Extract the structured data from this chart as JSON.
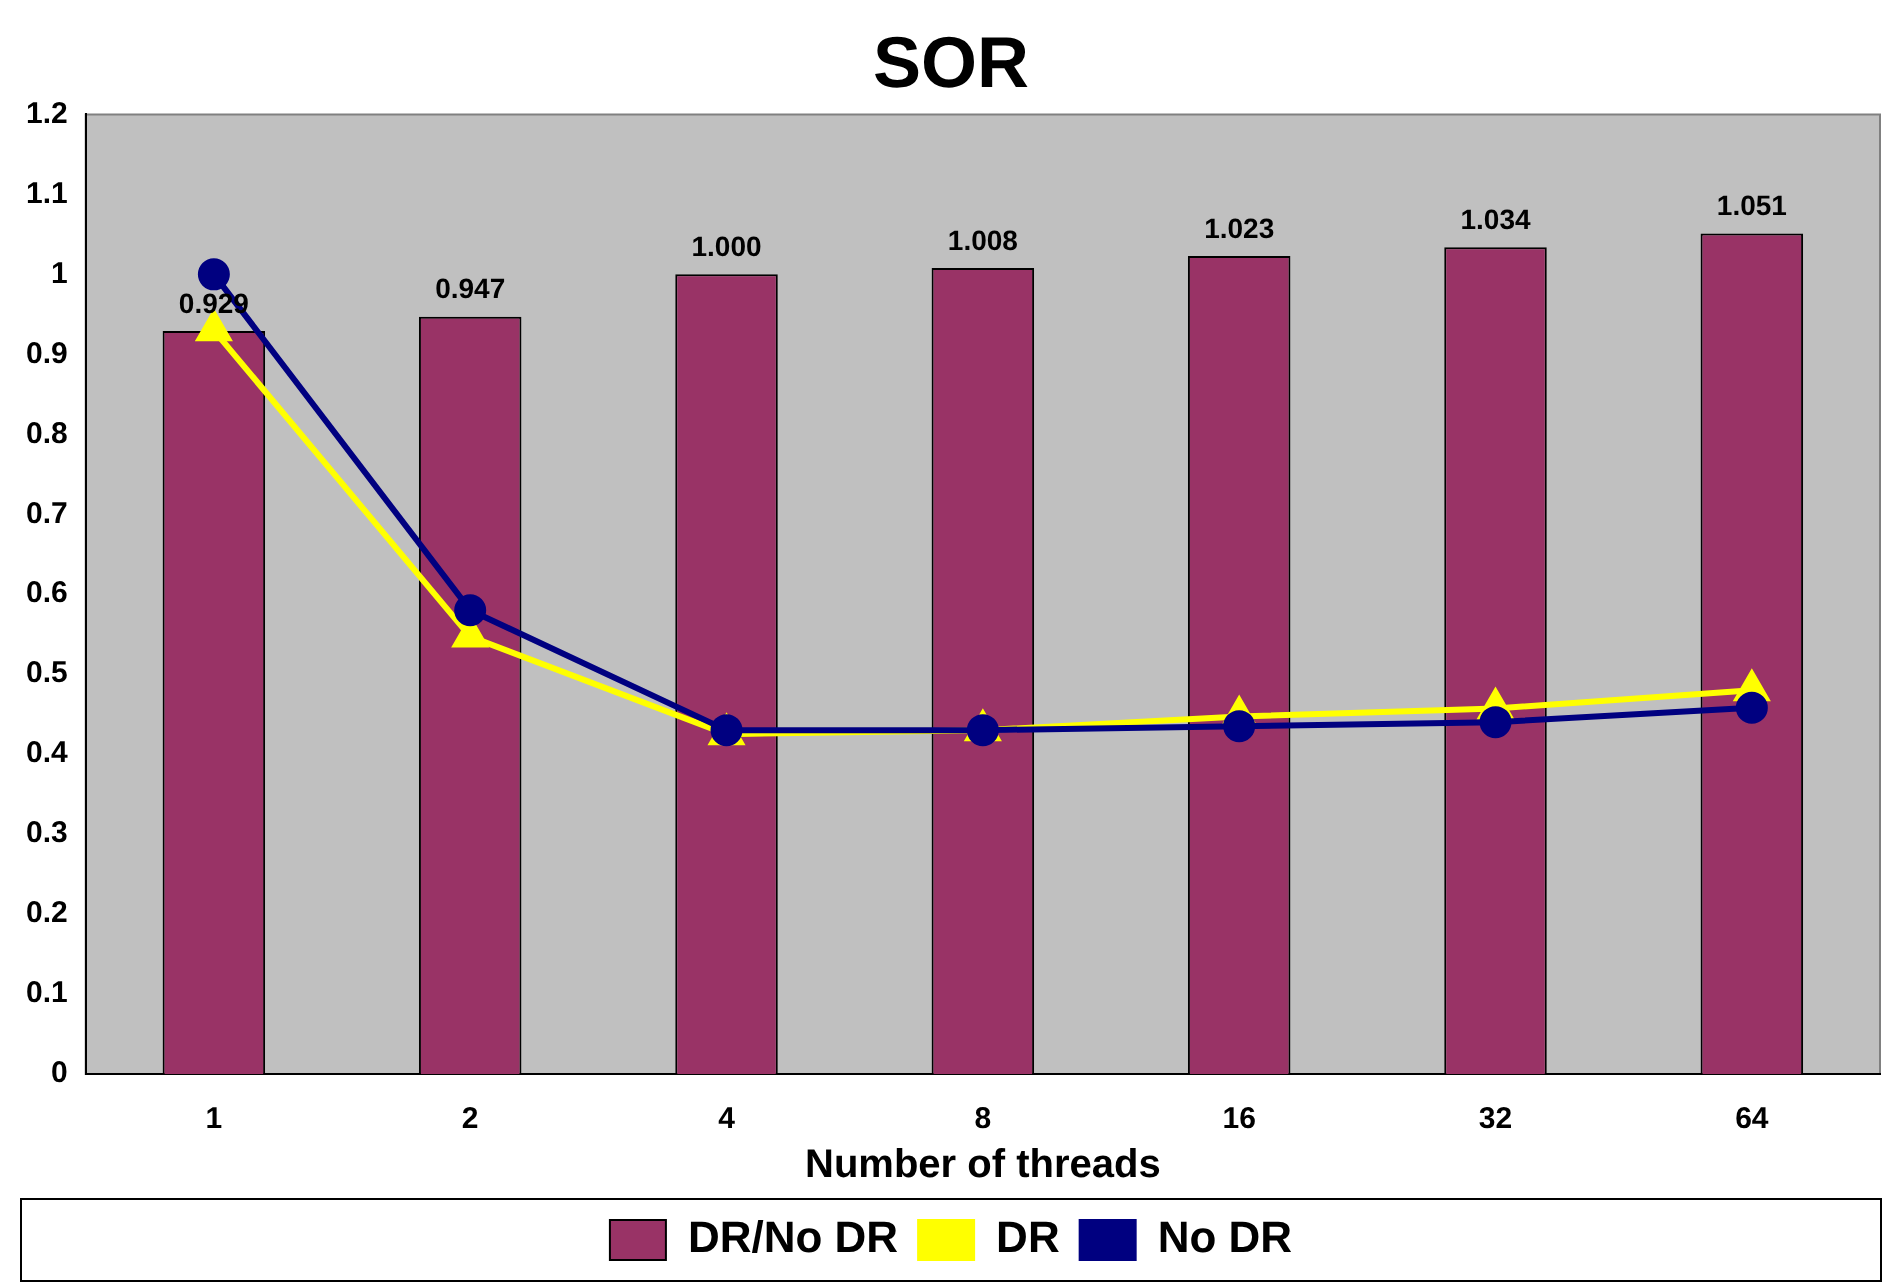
{
  "chart_data": {
    "type": "bar",
    "title": "SOR",
    "xlabel": "Number of threads",
    "categories": [
      "1",
      "2",
      "4",
      "8",
      "16",
      "32",
      "64"
    ],
    "series": [
      {
        "name": "DR/No DR",
        "color": "#993366",
        "values": [
          0.929,
          0.947,
          1.0,
          1.008,
          1.023,
          1.034,
          1.051
        ],
        "value_labels": [
          "0.929",
          "0.947",
          "1.000",
          "1.008",
          "1.023",
          "1.034",
          "1.051"
        ]
      },
      {
        "name": "DR",
        "type": "line",
        "color": "#ffff00",
        "marker": "triangle",
        "values": [
          0.93,
          0.547,
          0.425,
          0.43,
          0.447,
          0.457,
          0.48
        ]
      },
      {
        "name": "No DR",
        "type": "line",
        "color": "#000080",
        "marker": "circle",
        "values": [
          1.0,
          0.58,
          0.43,
          0.43,
          0.435,
          0.44,
          0.458
        ]
      }
    ],
    "ylim": [
      0,
      1.2
    ],
    "yticks": [
      0,
      0.1,
      0.2,
      0.3,
      0.4,
      0.5,
      0.6,
      0.7,
      0.8,
      0.9,
      1,
      1.1,
      1.2
    ],
    "grid": false,
    "legend": "bottom"
  }
}
